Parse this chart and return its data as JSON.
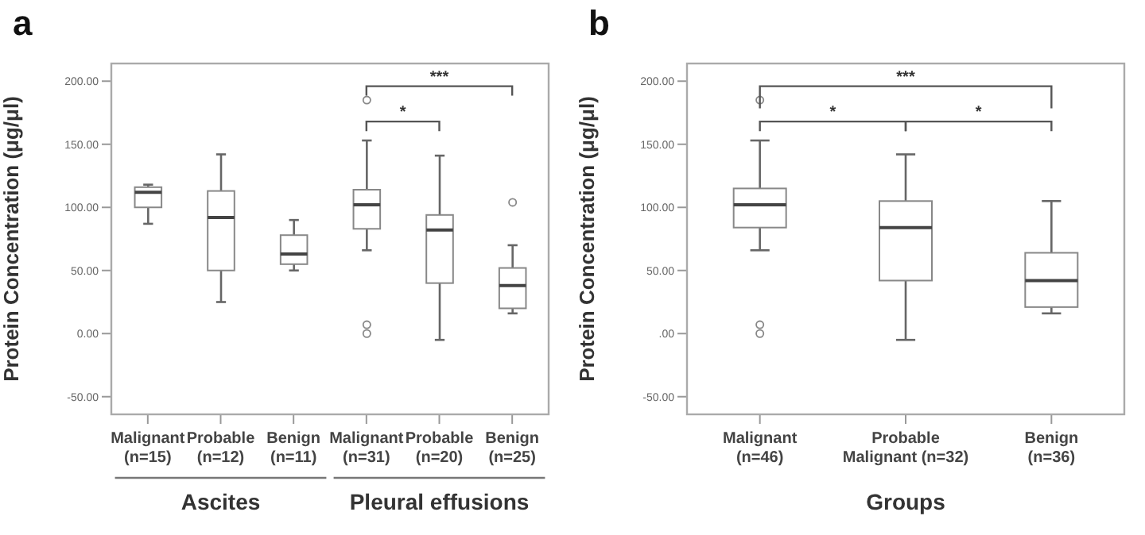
{
  "chart_data": [
    {
      "type": "box",
      "title": "a",
      "ylabel": "Protein Concentration (μg/μl)",
      "categories": [
        "Malignant\n(n=15)",
        "Probable\n(n=12)",
        "Benign\n(n=11)",
        "Malignant\n(n=31)",
        "Probable\n(n=20)",
        "Benign\n(n=25)"
      ],
      "boxes": [
        {
          "low": 87,
          "q1": 100,
          "median": 112,
          "q3": 116,
          "high": 118
        },
        {
          "low": 25,
          "q1": 50,
          "median": 92,
          "q3": 113,
          "high": 142
        },
        {
          "low": 50,
          "q1": 55,
          "median": 63,
          "q3": 78,
          "high": 90
        },
        {
          "low": 66,
          "q1": 83,
          "median": 102,
          "q3": 114,
          "high": 153,
          "outliers": [
            185,
            7,
            0
          ]
        },
        {
          "low": -5,
          "q1": 40,
          "median": 82,
          "q3": 94,
          "high": 141
        },
        {
          "low": 16,
          "q1": 20,
          "median": 38,
          "q3": 52,
          "high": 70,
          "outliers": [
            104
          ]
        }
      ],
      "ylim": [
        -64,
        214
      ],
      "yticks": [
        {
          "value": -50,
          "label": "-50.00"
        },
        {
          "value": 0,
          "label": "0.00"
        },
        {
          "value": 50,
          "label": "50.00"
        },
        {
          "value": 100,
          "label": "100.00"
        },
        {
          "value": 150,
          "label": "150.00"
        },
        {
          "value": 200,
          "label": "200.00"
        }
      ],
      "annotations": [
        "***",
        "*",
        "Ascites",
        "Pleural effusions"
      ]
    },
    {
      "type": "box",
      "title": "b",
      "ylabel": "Protein Concentration (μg/μl)",
      "xlabel": "Groups",
      "categories": [
        "Malignant\n(n=46)",
        "Probable\nMalignant (n=32)",
        "Benign\n(n=36)"
      ],
      "boxes": [
        {
          "low": 66,
          "q1": 84,
          "median": 102,
          "q3": 115,
          "high": 153,
          "outliers": [
            185,
            7,
            0
          ]
        },
        {
          "low": -5,
          "q1": 42,
          "median": 84,
          "q3": 105,
          "high": 142
        },
        {
          "low": 16,
          "q1": 21,
          "median": 42,
          "q3": 64,
          "high": 105
        }
      ],
      "ylim": [
        -64,
        214
      ],
      "yticks": [
        {
          "value": -50,
          "label": "-50.00"
        },
        {
          "value": 0,
          "label": ".00"
        },
        {
          "value": 50,
          "label": "50.00"
        },
        {
          "value": 100,
          "label": "100.00"
        },
        {
          "value": 150,
          "label": "150.00"
        },
        {
          "value": 200,
          "label": "200.00"
        }
      ],
      "annotations": [
        "***",
        "*",
        "*"
      ]
    }
  ]
}
